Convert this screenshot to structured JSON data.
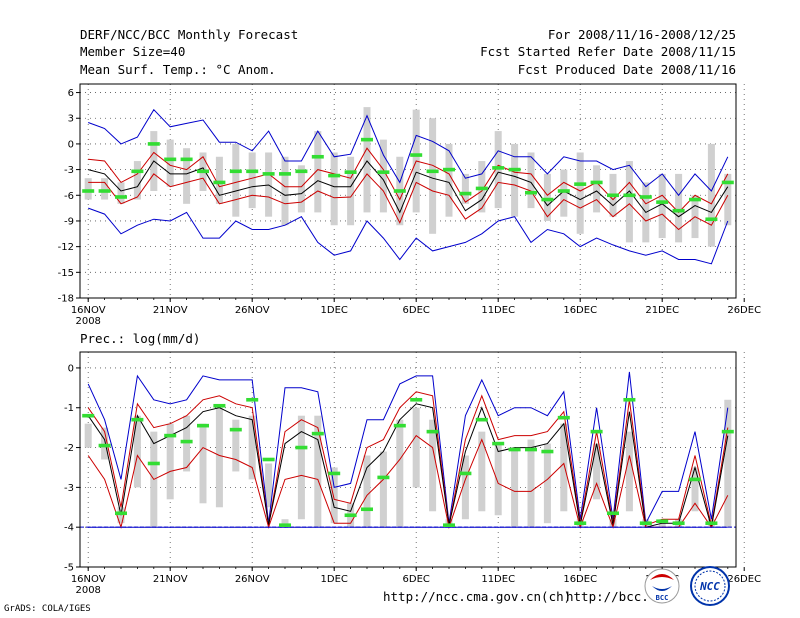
{
  "header": {
    "left_line1": "DERF/NCC/BCC Monthly Forecast",
    "left_line2": "Member Size=40",
    "left_line3": "Mean Surf. Temp.: °C Anom.",
    "right_line1": "For 2008/11/16-2008/12/25",
    "right_line2": "Fcst Started Refer Date 2008/11/15",
    "right_line3": "Fcst Produced Date 2008/11/16"
  },
  "footer": {
    "grads": "GrADS: COLA/IGES",
    "url1": "http://ncc.cma.gov.cn(ch)",
    "url2": "http://bcc.",
    "logo_bcc": "BCC",
    "logo_ncc": "NCC"
  },
  "colors": {
    "envelope": "#0000cc",
    "spread": "#cc0000",
    "mean": "#000000",
    "bar": "#d0d0d0",
    "marker": "#33dd33",
    "baseline": "#0000cc"
  },
  "chart_data": [
    {
      "type": "line",
      "title": "Mean Surf. Temp.: °C Anom.",
      "x_tick_labels": [
        "16NOV",
        "21NOV",
        "26NOV",
        "1DEC",
        "6DEC",
        "11DEC",
        "16DEC",
        "21DEC",
        "26DEC"
      ],
      "x_year_label": "2008",
      "x_range": [
        0,
        40
      ],
      "days": 39,
      "ylim": [
        -18,
        7
      ],
      "y_ticks": [
        6,
        3,
        0,
        -3,
        -6,
        -9,
        -12,
        -15,
        -18
      ],
      "series": [
        {
          "name": "max",
          "values": [
            2.5,
            1.8,
            0,
            0.8,
            4,
            2,
            2.4,
            2.8,
            0.2,
            0.2,
            -0.8,
            1.5,
            -2,
            -2,
            1.5,
            -1.5,
            -1.2,
            3.3,
            -1.3,
            -4.5,
            1,
            0.3,
            -0.8,
            -4,
            -3.5,
            -0.8,
            -1.5,
            -1.5,
            -3.5,
            -1.5,
            -2,
            -2,
            -3,
            -2.5,
            -5,
            -3.5,
            -6,
            -3.5,
            -5.5,
            -1.5
          ]
        },
        {
          "name": "upper",
          "values": [
            -1.8,
            -2,
            -4.5,
            -3.5,
            -1,
            -2.5,
            -3,
            -1.5,
            -5,
            -4.5,
            -4,
            -3.5,
            -5,
            -5,
            -3,
            -3.5,
            -4,
            -0.5,
            -3,
            -6.5,
            -2,
            -2.5,
            -3.5,
            -6.8,
            -5.5,
            -2.5,
            -3.3,
            -3.5,
            -6,
            -4.5,
            -5.5,
            -4.5,
            -6.5,
            -4.5,
            -7,
            -6,
            -8,
            -6,
            -7,
            -3.5
          ]
        },
        {
          "name": "mean",
          "values": [
            -3,
            -3.5,
            -5.5,
            -5,
            -2,
            -3.5,
            -3.5,
            -2.8,
            -6,
            -5.5,
            -5,
            -4.8,
            -6,
            -5.8,
            -4.3,
            -5,
            -5,
            -2,
            -4.2,
            -8,
            -3.3,
            -4,
            -4.5,
            -7.8,
            -6.5,
            -3.3,
            -3.8,
            -4.5,
            -7.2,
            -5.5,
            -6.5,
            -5.5,
            -7.2,
            -5.5,
            -8,
            -7,
            -8.5,
            -7.2,
            -8,
            -5
          ]
        },
        {
          "name": "lower",
          "values": [
            -4.5,
            -4.5,
            -7,
            -6.2,
            -3.5,
            -5,
            -4.5,
            -4,
            -7,
            -6.5,
            -6,
            -6.2,
            -7,
            -6.8,
            -5.5,
            -6.3,
            -6.2,
            -3.5,
            -5.5,
            -9.2,
            -4.5,
            -5.5,
            -6,
            -8.8,
            -7.5,
            -4.5,
            -4.8,
            -5.5,
            -8.5,
            -6.5,
            -7.5,
            -6.5,
            -8.5,
            -7,
            -9,
            -8.2,
            -10,
            -8.5,
            -9.5,
            -6
          ]
        },
        {
          "name": "min",
          "values": [
            -7.5,
            -8.2,
            -10.5,
            -9.5,
            -8.8,
            -9,
            -8,
            -11,
            -11,
            -9,
            -10,
            -10,
            -9.5,
            -8.5,
            -11.5,
            -13,
            -12.5,
            -9,
            -11,
            -13.5,
            -11,
            -12.5,
            -12,
            -11.5,
            -10.5,
            -9,
            -8.5,
            -11.5,
            -10,
            -10.5,
            -12,
            -11,
            -11.8,
            -12.5,
            -13,
            -12.5,
            -13.5,
            -13.5,
            -14,
            -9
          ]
        },
        {
          "name": "marker",
          "values": [
            -5.5,
            -5.5,
            -6.2,
            -3.2,
            0,
            -1.8,
            -1.8,
            -3.2,
            -4.5,
            -3.2,
            -3.2,
            -3.5,
            -3.5,
            -3.2,
            -1.5,
            -3.7,
            -3.3,
            0.5,
            -3.3,
            -5.5,
            -1.3,
            -3.2,
            -3,
            -5.8,
            -5.2,
            -2.8,
            -3,
            -5.7,
            -6.5,
            -5.5,
            -4.7,
            -4.5,
            -6,
            -6,
            -6.2,
            -6.8,
            -7.8,
            -6.5,
            -8.8,
            -4.5
          ]
        },
        {
          "name": "bar_top",
          "values": [
            -4,
            -4,
            -4.5,
            -2,
            1.5,
            0.5,
            -0.5,
            -1,
            -1.5,
            0,
            -1,
            -1,
            -1.5,
            -2.5,
            1.5,
            -1,
            -1.5,
            4.3,
            0.5,
            -1.5,
            4,
            3,
            0,
            -3.5,
            -2,
            1.5,
            0,
            -1,
            -3.5,
            -3,
            -1,
            -2.5,
            -3.5,
            -2,
            -4.5,
            -3.5,
            -3.5,
            -6,
            0,
            -3.5
          ]
        },
        {
          "name": "bar_bottom",
          "values": [
            -6.5,
            -6.5,
            -7,
            -6.5,
            -5.5,
            -5,
            -7,
            -5.5,
            -7,
            -8.5,
            -7.5,
            -8.5,
            -9.5,
            -8,
            -8,
            -9.5,
            -9.5,
            -8,
            -8,
            -9.5,
            -8,
            -10.5,
            -8.5,
            -7,
            -8,
            -7.5,
            -8.5,
            -7.5,
            -9,
            -8.5,
            -10.5,
            -8,
            -8.5,
            -11.5,
            -11.5,
            -11,
            -11.5,
            -11,
            -12,
            -9.5
          ]
        }
      ]
    },
    {
      "type": "line",
      "title": "Prec.: log(mm/d)",
      "x_tick_labels": [
        "16NOV",
        "21NOV",
        "26NOV",
        "1DEC",
        "6DEC",
        "11DEC",
        "16DEC",
        "21DEC",
        "26DEC"
      ],
      "x_year_label": "2008",
      "x_range": [
        0,
        40
      ],
      "days": 39,
      "ylim": [
        -5,
        0.4
      ],
      "y_ticks": [
        0,
        -1,
        -2,
        -3,
        -4,
        -5
      ],
      "baseline": -4,
      "series": [
        {
          "name": "max",
          "values": [
            -0.4,
            -1.3,
            -2.8,
            -0.2,
            -0.8,
            -0.9,
            -0.8,
            -0.2,
            -0.3,
            -0.3,
            -0.3,
            -3.9,
            -0.5,
            -0.5,
            -0.6,
            -3,
            -2.9,
            -1.3,
            -1.3,
            -0.4,
            -0.2,
            -0.2,
            -3.9,
            -1.2,
            -0.3,
            -1.2,
            -1,
            -1,
            -1.2,
            -0.6,
            -3.8,
            -1,
            -3.8,
            -0.1,
            -3.9,
            -3.1,
            -3.1,
            -1.6,
            -3.8,
            -1
          ]
        },
        {
          "name": "upper",
          "values": [
            -1,
            -1.6,
            -3.5,
            -0.9,
            -1.5,
            -1.4,
            -1.2,
            -0.8,
            -0.7,
            -0.9,
            -1,
            -3.95,
            -1.6,
            -1.3,
            -1.5,
            -3.3,
            -3.4,
            -2,
            -1.8,
            -1,
            -0.6,
            -0.7,
            -3.95,
            -1.8,
            -0.7,
            -1.8,
            -1.7,
            -1.7,
            -1.6,
            -1.1,
            -3.9,
            -1.6,
            -3.9,
            -0.8,
            -3.95,
            -3.8,
            -3.8,
            -2.2,
            -3.95,
            -1.5
          ]
        },
        {
          "name": "mean",
          "values": [
            -1.2,
            -1.8,
            -3.7,
            -1.2,
            -1.9,
            -1.7,
            -1.5,
            -1.1,
            -1,
            -1.2,
            -1.3,
            -3.95,
            -1.9,
            -1.6,
            -1.8,
            -3.5,
            -3.6,
            -2.5,
            -2.1,
            -1.3,
            -0.9,
            -1,
            -3.95,
            -2.1,
            -1,
            -2.1,
            -2,
            -2,
            -1.9,
            -1.4,
            -3.95,
            -1.9,
            -3.95,
            -1.1,
            -4,
            -3.9,
            -3.9,
            -2.5,
            -4,
            -1.7
          ]
        },
        {
          "name": "lower",
          "values": [
            -2.2,
            -2.8,
            -4,
            -2.2,
            -2.8,
            -2.6,
            -2.5,
            -2,
            -2.2,
            -2.3,
            -2.5,
            -4,
            -2.8,
            -2.7,
            -2.8,
            -3.9,
            -3.9,
            -3.2,
            -2.8,
            -2.3,
            -1.7,
            -2,
            -4,
            -2.8,
            -1.8,
            -2.9,
            -3.1,
            -3.1,
            -2.8,
            -2.4,
            -4,
            -2.9,
            -4,
            -2.2,
            -4,
            -4,
            -4,
            -3.4,
            -4,
            -3.2
          ]
        },
        {
          "name": "min",
          "values": [
            -4,
            -4,
            -4,
            -4,
            -4,
            -4,
            -4,
            -4,
            -4,
            -4,
            -4,
            -4,
            -4,
            -4,
            -4,
            -4,
            -4,
            -4,
            -4,
            -4,
            -4,
            -4,
            -4,
            -4,
            -4,
            -4,
            -4,
            -4,
            -4,
            -4,
            -4,
            -4,
            -4,
            -4,
            -4,
            -4,
            -4,
            -4,
            -4,
            -4
          ]
        },
        {
          "name": "marker",
          "values": [
            -1.2,
            -1.95,
            -3.65,
            -1.3,
            -2.4,
            -1.7,
            -1.85,
            -1.45,
            -0.95,
            -1.55,
            -0.8,
            -2.3,
            -3.95,
            -2,
            -1.65,
            -2.65,
            -3.7,
            -3.55,
            -2.75,
            -1.45,
            -0.8,
            -1.6,
            -3.95,
            -2.65,
            -1.3,
            -1.9,
            -2.05,
            -2.05,
            -2.1,
            -1.25,
            -3.9,
            -1.6,
            -3.65,
            -0.8,
            -3.9,
            -3.85,
            -3.9,
            -2.8,
            -3.9,
            -1.6
          ]
        },
        {
          "name": "bar_top",
          "values": [
            -1.4,
            -1.5,
            -3.5,
            -1.2,
            -1.6,
            -1.4,
            -1.2,
            -1.4,
            -1,
            -1.3,
            -1.2,
            -2.4,
            -3.8,
            -1.2,
            -1.2,
            -2.5,
            -3.4,
            -2.2,
            -2.1,
            -1.3,
            -1,
            -1.3,
            -3.8,
            -2.2,
            -1.6,
            -1.9,
            -2,
            -1.8,
            -1.9,
            -1.4,
            -3.8,
            -1.9,
            -3.8,
            -1.6,
            -3.8,
            -3.8,
            -3.8,
            -2.5,
            -3.8,
            -0.8
          ]
        },
        {
          "name": "bar_bottom",
          "values": [
            -2,
            -2.3,
            -3.9,
            -3,
            -4,
            -3.3,
            -2.6,
            -3.4,
            -3.5,
            -2.6,
            -2.8,
            -3.5,
            -4,
            -3.8,
            -4,
            -3.9,
            -4,
            -4,
            -4,
            -4,
            -3,
            -3.6,
            -4,
            -3.8,
            -3.6,
            -3.7,
            -4,
            -4,
            -3.9,
            -3.6,
            -4,
            -3.3,
            -4,
            -3.6,
            -4,
            -4,
            -4,
            -3.6,
            -4,
            -4
          ]
        }
      ]
    }
  ]
}
